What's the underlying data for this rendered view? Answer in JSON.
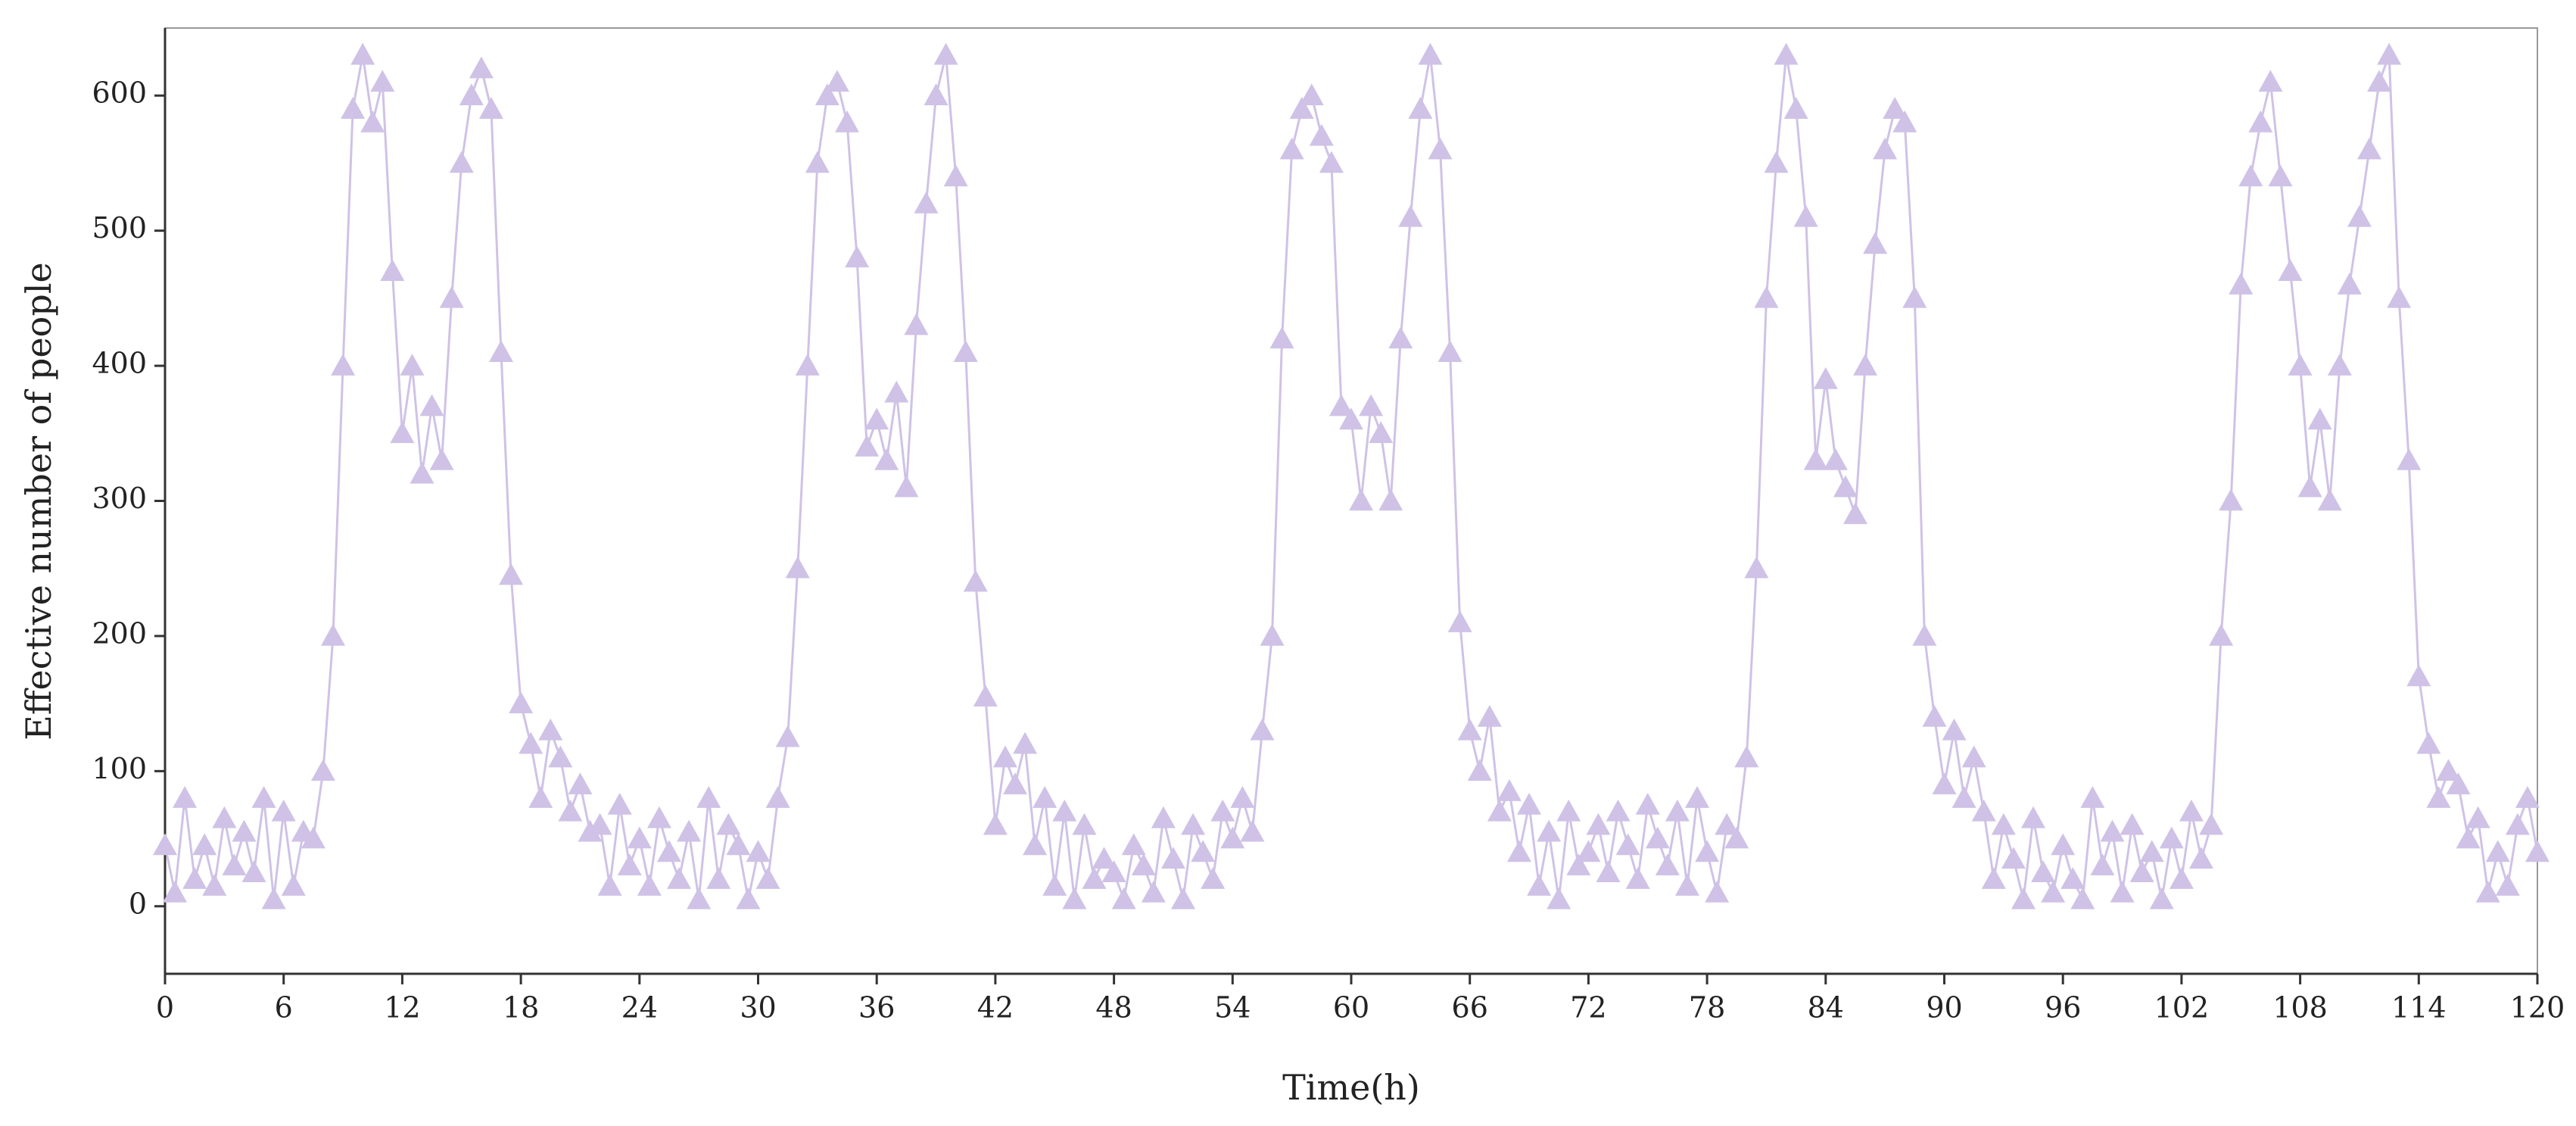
{
  "chart_data": {
    "type": "line",
    "x_label": "Time(h)",
    "y_label": "Effective number of people",
    "xlim": [
      0,
      120
    ],
    "ylim": [
      -50,
      650
    ],
    "xticks": [
      0,
      6,
      12,
      18,
      24,
      30,
      36,
      42,
      48,
      54,
      60,
      66,
      72,
      78,
      84,
      90,
      96,
      102,
      108,
      114,
      120
    ],
    "yticks": [
      0,
      100,
      200,
      300,
      400,
      500,
      600
    ],
    "marker": "triangle",
    "grid": false,
    "x": [
      0,
      0.5,
      1,
      1.5,
      2,
      2.5,
      3,
      3.5,
      4,
      4.5,
      5,
      5.5,
      6,
      6.5,
      7,
      7.5,
      8,
      8.5,
      9,
      9.5,
      10,
      10.5,
      11,
      11.5,
      12,
      12.5,
      13,
      13.5,
      14,
      14.5,
      15,
      15.5,
      16,
      16.5,
      17,
      17.5,
      18,
      18.5,
      19,
      19.5,
      20,
      20.5,
      21,
      21.5,
      22,
      22.5,
      23,
      23.5,
      24,
      24.5,
      25,
      25.5,
      26,
      26.5,
      27,
      27.5,
      28,
      28.5,
      29,
      29.5,
      30,
      30.5,
      31,
      31.5,
      32,
      32.5,
      33,
      33.5,
      34,
      34.5,
      35,
      35.5,
      36,
      36.5,
      37,
      37.5,
      38,
      38.5,
      39,
      39.5,
      40,
      40.5,
      41,
      41.5,
      42,
      42.5,
      43,
      43.5,
      44,
      44.5,
      45,
      45.5,
      46,
      46.5,
      47,
      47.5,
      48,
      48.5,
      49,
      49.5,
      50,
      50.5,
      51,
      51.5,
      52,
      52.5,
      53,
      53.5,
      54,
      54.5,
      55,
      55.5,
      56,
      56.5,
      57,
      57.5,
      58,
      58.5,
      59,
      59.5,
      60,
      60.5,
      61,
      61.5,
      62,
      62.5,
      63,
      63.5,
      64,
      64.5,
      65,
      65.5,
      66,
      66.5,
      67,
      67.5,
      68,
      68.5,
      69,
      69.5,
      70,
      70.5,
      71,
      71.5,
      72,
      72.5,
      73,
      73.5,
      74,
      74.5,
      75,
      75.5,
      76,
      76.5,
      77,
      77.5,
      78,
      78.5,
      79,
      79.5,
      80,
      80.5,
      81,
      81.5,
      82,
      82.5,
      83,
      83.5,
      84,
      84.5,
      85,
      85.5,
      86,
      86.5,
      87,
      87.5,
      88,
      88.5,
      89,
      89.5,
      90,
      90.5,
      91,
      91.5,
      92,
      92.5,
      93,
      93.5,
      94,
      94.5,
      95,
      95.5,
      96,
      96.5,
      97,
      97.5,
      98,
      98.5,
      99,
      99.5,
      100,
      100.5,
      101,
      101.5,
      102,
      102.5,
      103,
      103.5,
      104,
      104.5,
      105,
      105.5,
      106,
      106.5,
      107,
      107.5,
      108,
      108.5,
      109,
      109.5,
      110,
      110.5,
      111,
      111.5,
      112,
      112.5,
      113,
      113.5,
      114,
      114.5,
      115,
      115.5,
      116,
      116.5,
      117,
      117.5,
      118,
      118.5,
      119,
      119.5,
      120
    ],
    "series": [
      {
        "color": "#cfc2e6",
        "values": [
          45,
          10,
          80,
          20,
          45,
          15,
          65,
          30,
          55,
          25,
          80,
          5,
          70,
          15,
          55,
          50,
          100,
          200,
          400,
          590,
          630,
          580,
          610,
          470,
          350,
          400,
          320,
          370,
          330,
          450,
          550,
          600,
          620,
          590,
          410,
          245,
          150,
          120,
          80,
          130,
          110,
          70,
          90,
          55,
          60,
          15,
          75,
          30,
          50,
          15,
          65,
          40,
          20,
          55,
          5,
          80,
          20,
          60,
          45,
          5,
          40,
          20,
          80,
          125,
          250,
          400,
          550,
          600,
          610,
          580,
          480,
          340,
          360,
          330,
          380,
          310,
          430,
          520,
          600,
          630,
          540,
          410,
          240,
          155,
          60,
          110,
          90,
          120,
          45,
          80,
          15,
          70,
          5,
          60,
          20,
          35,
          25,
          5,
          45,
          30,
          10,
          65,
          35,
          5,
          60,
          40,
          20,
          70,
          50,
          80,
          55,
          130,
          200,
          420,
          560,
          590,
          600,
          570,
          550,
          370,
          360,
          300,
          370,
          350,
          300,
          420,
          510,
          590,
          630,
          560,
          410,
          210,
          130,
          100,
          140,
          70,
          85,
          40,
          75,
          15,
          55,
          5,
          70,
          30,
          40,
          60,
          25,
          70,
          45,
          20,
          75,
          50,
          30,
          70,
          15,
          80,
          40,
          10,
          60,
          50,
          110,
          250,
          450,
          550,
          630,
          590,
          510,
          330,
          390,
          330,
          310,
          290,
          400,
          490,
          560,
          590,
          580,
          450,
          200,
          140,
          90,
          130,
          80,
          110,
          70,
          20,
          60,
          35,
          5,
          65,
          25,
          10,
          45,
          20,
          5,
          80,
          30,
          55,
          10,
          60,
          25,
          40,
          5,
          50,
          20,
          70,
          35,
          60,
          200,
          300,
          460,
          540,
          580,
          610,
          540,
          470,
          400,
          310,
          360,
          300,
          400,
          460,
          510,
          560,
          610,
          630,
          450,
          330,
          170,
          120,
          80,
          100,
          90,
          50,
          65,
          10,
          40,
          15,
          60,
          80,
          40
        ]
      }
    ]
  }
}
